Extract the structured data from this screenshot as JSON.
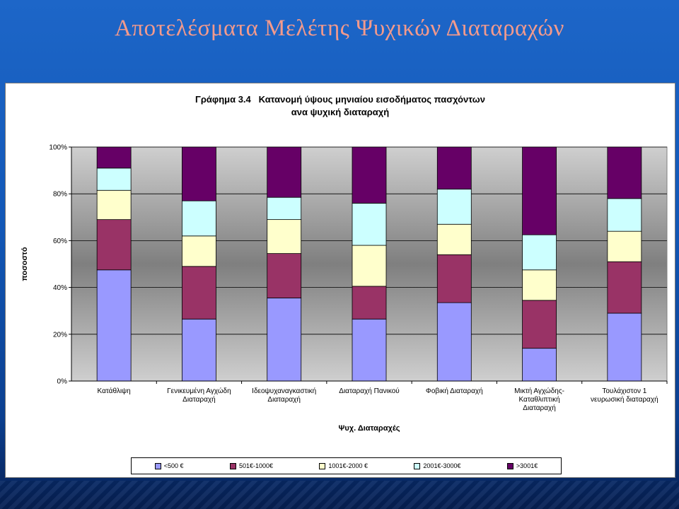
{
  "slide": {
    "title": "Αποτελέσματα Μελέτης Ψυχικών Διαταραχών"
  },
  "chart_data": {
    "type": "bar",
    "stacked": true,
    "percent": true,
    "title_line1": "Γράφημα 3.4   Κατανομή ύψους μηνιαίου εισοδήματος πασχόντων",
    "title_line2": "ανα ψυχική διαταραχή",
    "xlabel": "Ψυχ. Διαταραχές",
    "ylabel": "ποσοστό",
    "ylim": [
      0,
      100
    ],
    "yticks": [
      "0%",
      "20%",
      "40%",
      "60%",
      "80%",
      "100%"
    ],
    "categories": [
      [
        "Κατάθλιψη"
      ],
      [
        "Γενικευμένη Αγχώδη",
        "Διαταραχή"
      ],
      [
        "Ιδεοψυχαναγκαστική",
        "Διαταραχή"
      ],
      [
        "Διαταραχή Πανικού"
      ],
      [
        "Φοβική Διαταραχή"
      ],
      [
        "Μικτή Αγχώδης-",
        "Καταθλιπτική",
        "Διαταραχή"
      ],
      [
        "Τουλάχιστον 1",
        "νευρωσική διαταραχή"
      ]
    ],
    "legend_position": "bottom",
    "series": [
      {
        "name": "<500 €",
        "color": "#9999ff",
        "values": [
          47.5,
          26.5,
          35.5,
          26.5,
          33.5,
          14,
          29
        ]
      },
      {
        "name": "501€-1000€",
        "color": "#993366",
        "values": [
          21.5,
          22.5,
          19,
          14,
          20.5,
          20.5,
          22
        ]
      },
      {
        "name": "1001€-2000 €",
        "color": "#ffffcc",
        "values": [
          12.5,
          13,
          14.5,
          17.5,
          13,
          13,
          13
        ]
      },
      {
        "name": "2001€-3000€",
        "color": "#ccffff",
        "values": [
          9.5,
          15,
          9.5,
          18,
          15,
          15,
          14
        ]
      },
      {
        "name": ">3001€",
        "color": "#660066",
        "values": [
          9,
          23,
          21.5,
          24,
          18,
          37.5,
          22
        ]
      }
    ]
  }
}
